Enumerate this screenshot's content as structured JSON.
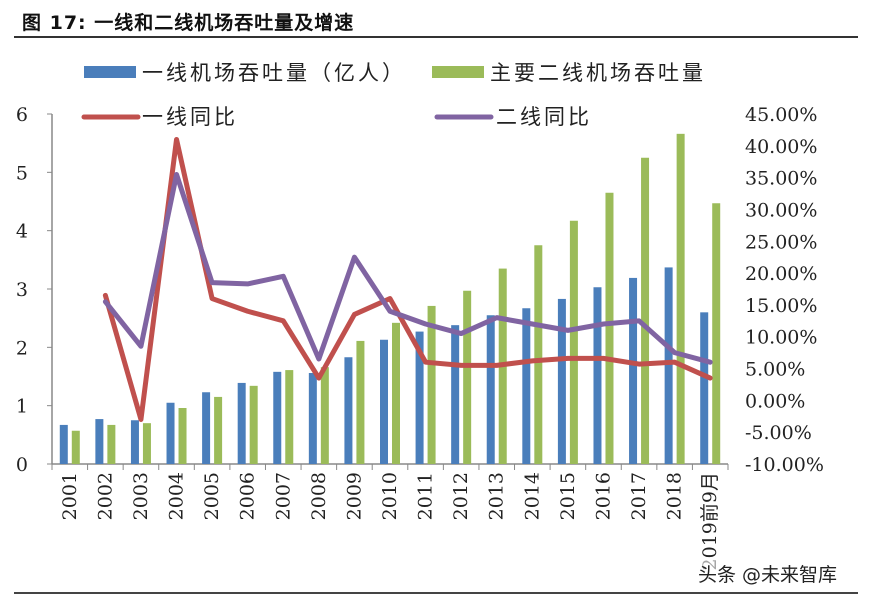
{
  "title": "图 17:  一线和二线机场吞吐量及增速",
  "watermark": "头条 @未来智库",
  "chart_data": {
    "type": "bar+line",
    "categories": [
      "2001",
      "2002",
      "2003",
      "2004",
      "2005",
      "2006",
      "2007",
      "2008",
      "2009",
      "2010",
      "2011",
      "2012",
      "2013",
      "2014",
      "2015",
      "2016",
      "2017",
      "2018",
      "2019前9月"
    ],
    "series": [
      {
        "name": "一线机场吞吐量（亿人）",
        "type": "bar",
        "axis": "left",
        "color": "#4a7ebb",
        "values": [
          0.67,
          0.77,
          0.75,
          1.05,
          1.23,
          1.39,
          1.58,
          1.56,
          1.83,
          2.13,
          2.27,
          2.38,
          2.55,
          2.67,
          2.83,
          3.03,
          3.19,
          3.37,
          2.6
        ]
      },
      {
        "name": "主要二线机场吞吐量",
        "type": "bar",
        "axis": "left",
        "color": "#9bbb59",
        "values": [
          0.57,
          0.67,
          0.7,
          0.96,
          1.15,
          1.34,
          1.61,
          1.66,
          2.11,
          2.42,
          2.71,
          2.97,
          3.35,
          3.75,
          4.17,
          4.65,
          5.25,
          5.66,
          4.47
        ]
      },
      {
        "name": "一线同比",
        "type": "line",
        "axis": "right",
        "color": "#c0504d",
        "values": [
          null,
          16.5,
          -3.0,
          41.0,
          16.0,
          14.0,
          12.5,
          3.5,
          13.5,
          16.0,
          6.0,
          5.5,
          5.5,
          6.2,
          6.6,
          6.6,
          5.7,
          6.0,
          3.5
        ]
      },
      {
        "name": "二线同比",
        "type": "line",
        "axis": "right",
        "color": "#8064a2",
        "values": [
          null,
          15.5,
          8.5,
          35.5,
          18.5,
          18.3,
          19.5,
          6.5,
          22.5,
          14.0,
          12.0,
          10.5,
          13.0,
          12.0,
          11.0,
          12.0,
          12.5,
          7.5,
          6.0
        ]
      }
    ],
    "left_axis": {
      "min": 0,
      "max": 6,
      "ticks": [
        "0",
        "1",
        "2",
        "3",
        "4",
        "5",
        "6"
      ]
    },
    "right_axis": {
      "min": -10,
      "max": 45,
      "ticks": [
        "-10.00%",
        "-5.00%",
        "0.00%",
        "5.00%",
        "10.00%",
        "15.00%",
        "20.00%",
        "25.00%",
        "30.00%",
        "35.00%",
        "40.00%",
        "45.00%"
      ]
    },
    "grid": false,
    "legend": "top"
  }
}
